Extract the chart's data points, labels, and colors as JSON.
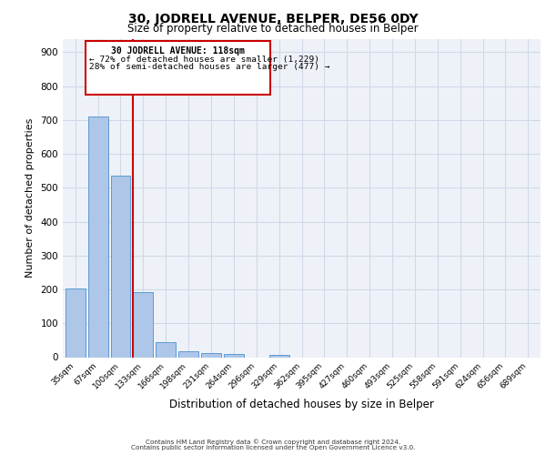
{
  "title": "30, JODRELL AVENUE, BELPER, DE56 0DY",
  "subtitle": "Size of property relative to detached houses in Belper",
  "xlabel": "Distribution of detached houses by size in Belper",
  "ylabel": "Number of detached properties",
  "categories": [
    "35sqm",
    "67sqm",
    "100sqm",
    "133sqm",
    "166sqm",
    "198sqm",
    "231sqm",
    "264sqm",
    "296sqm",
    "329sqm",
    "362sqm",
    "395sqm",
    "427sqm",
    "460sqm",
    "493sqm",
    "525sqm",
    "558sqm",
    "591sqm",
    "624sqm",
    "656sqm",
    "689sqm"
  ],
  "values": [
    203,
    710,
    537,
    193,
    44,
    17,
    13,
    9,
    0,
    8,
    0,
    0,
    0,
    0,
    0,
    0,
    0,
    0,
    0,
    0,
    0
  ],
  "bar_color": "#aec6e8",
  "bar_edge_color": "#5b9bd5",
  "property_label": "30 JODRELL AVENUE: 118sqm",
  "annotation_line1": "← 72% of detached houses are smaller (1,229)",
  "annotation_line2": "28% of semi-detached houses are larger (477) →",
  "vline_color": "#cc0000",
  "vline_position": 2.545,
  "annotation_box_color": "#cc0000",
  "ylim": [
    0,
    940
  ],
  "yticks": [
    0,
    100,
    200,
    300,
    400,
    500,
    600,
    700,
    800,
    900
  ],
  "grid_color": "#d0d8e8",
  "background_color": "#eef2f8",
  "footer_line1": "Contains HM Land Registry data © Crown copyright and database right 2024.",
  "footer_line2": "Contains public sector information licensed under the Open Government Licence v3.0."
}
